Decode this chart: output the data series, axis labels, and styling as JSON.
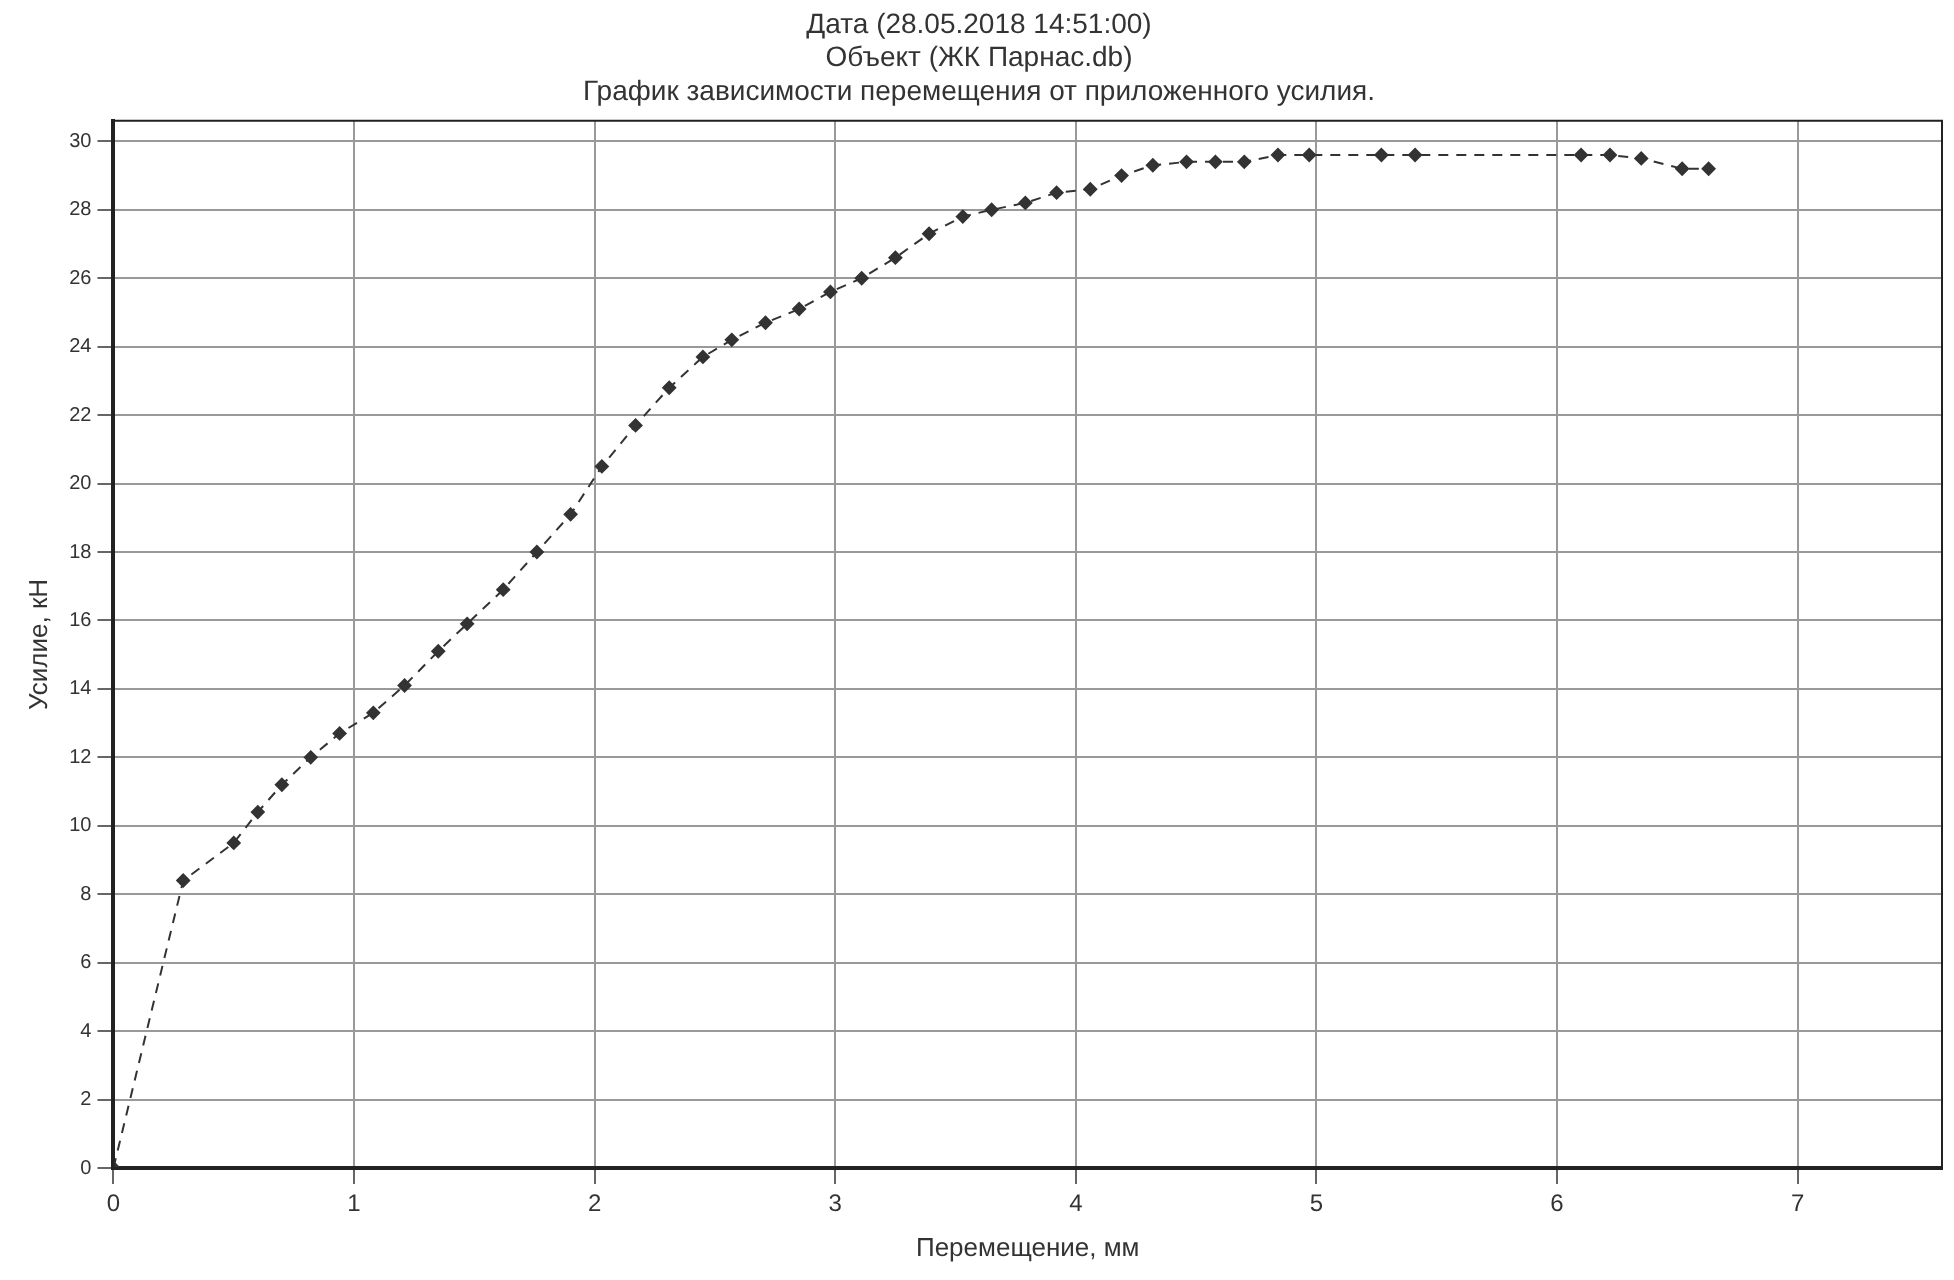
{
  "chart_data": {
    "type": "line",
    "title": [
      "Дата (28.05.2018 14:51:00)",
      "Объект (ЖК Парнас.db)",
      "График зависимости перемещения от приложенного усилия."
    ],
    "xlabel": "Перемещение, мм",
    "ylabel": "Усилие, кН",
    "series": [
      {
        "color": "#333333",
        "x": [
          0,
          0.29,
          0.5,
          0.6,
          0.7,
          0.82,
          0.94,
          1.08,
          1.21,
          1.35,
          1.47,
          1.62,
          1.76,
          1.9,
          2.03,
          2.17,
          2.31,
          2.45,
          2.57,
          2.71,
          2.85,
          2.98,
          3.11,
          3.25,
          3.39,
          3.53,
          3.65,
          3.79,
          3.92,
          4.06,
          4.19,
          4.32,
          4.46,
          4.58,
          4.7,
          4.84,
          4.97,
          5.27,
          5.41,
          6.1,
          6.22,
          6.35,
          6.52,
          6.63
        ],
        "values": [
          0,
          8.4,
          9.5,
          10.4,
          11.2,
          12.0,
          12.7,
          13.3,
          14.1,
          15.1,
          15.9,
          16.9,
          18.0,
          19.1,
          20.5,
          21.7,
          22.8,
          23.7,
          24.2,
          24.7,
          25.1,
          25.6,
          26.0,
          26.6,
          27.3,
          27.8,
          28.0,
          28.2,
          28.5,
          28.6,
          29.0,
          29.3,
          29.4,
          29.4,
          29.4,
          29.6,
          29.6,
          29.6,
          29.6,
          29.6,
          29.6,
          29.5,
          29.2,
          29.2
        ]
      }
    ],
    "xlim": [
      0,
      7.6
    ],
    "xticks": [
      0,
      1,
      2,
      3,
      4,
      5,
      6,
      7
    ],
    "ylim": [
      0,
      30.6
    ],
    "yticks": [
      0,
      2,
      4,
      6,
      8,
      10,
      12,
      14,
      16,
      18,
      20,
      22,
      24,
      26,
      28,
      30
    ],
    "grid": true,
    "legend": false,
    "marker": "diamond",
    "line_style": "dashed"
  }
}
